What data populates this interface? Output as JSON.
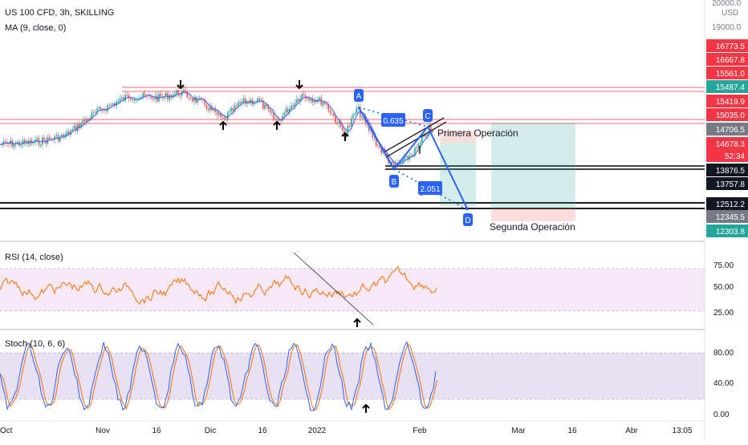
{
  "header": {
    "title": "US 100 CFD, 3h, SKILLING",
    "ma_label": "MA (9, close, 0)",
    "currency": "USD"
  },
  "chart_data": [
    {
      "type": "line",
      "name": "price",
      "x_ticks": [
        "Oct",
        "Nov",
        "16",
        "Dic",
        "16",
        "2022",
        "Feb",
        "Mar",
        "16",
        "Abr",
        "13:05"
      ],
      "y_axis_labels": [
        "20000.0",
        "19000.0"
      ],
      "price_tags": [
        {
          "value": "16773.5",
          "color": "#f23645"
        },
        {
          "value": "16667.8",
          "color": "#f23645"
        },
        {
          "value": "15561.0",
          "color": "#f23645"
        },
        {
          "value": "15487.4",
          "color": "#26a69a"
        },
        {
          "value": "15419.9",
          "color": "#f23645"
        },
        {
          "value": "15035.0",
          "color": "#f23645"
        },
        {
          "value": "14706.5",
          "color": "#787b86"
        },
        {
          "value": "14678.3",
          "color": "#f23645"
        },
        {
          "value": "52:34",
          "color": "#f23645"
        },
        {
          "value": "13876.5",
          "color": "#131722"
        },
        {
          "value": "13757.8",
          "color": "#131722"
        },
        {
          "value": "12512.2",
          "color": "#131722"
        },
        {
          "value": "12345.5",
          "color": "#787b86"
        },
        {
          "value": "12303.8",
          "color": "#26a69a"
        }
      ],
      "pattern": {
        "points": [
          "A",
          "B",
          "C",
          "D"
        ],
        "ratios": [
          "0.635",
          "2.051"
        ],
        "color": "#2962ff"
      },
      "annotations": [
        "Primera Operación",
        "Segunda Operación"
      ],
      "colors": {
        "up": "#26a69a",
        "down": "#ef5350",
        "ma": "#2962ff",
        "level": "#f23645"
      }
    },
    {
      "type": "line",
      "name": "RSI (14, close)",
      "ticks": [
        "75.00",
        "50.00",
        "25.00"
      ],
      "band": [
        30,
        70
      ],
      "color": "#ff6d00"
    },
    {
      "type": "line",
      "name": "Stoch (10, 6, 6)",
      "ticks": [
        "80.00",
        "40.00",
        "0.00"
      ],
      "band": [
        20,
        80
      ],
      "colors": {
        "k": "#2962ff",
        "d": "#ff6d00"
      }
    }
  ]
}
